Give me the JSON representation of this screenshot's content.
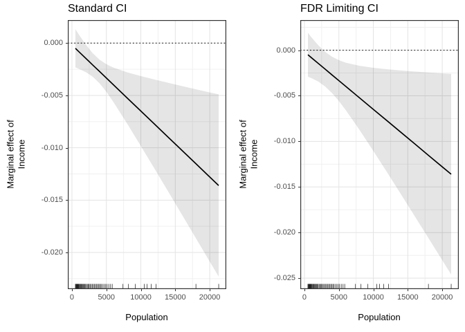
{
  "style": {
    "background": "#ffffff",
    "line_color": "#000000",
    "ribbon_color": "rgba(0,0,0,0.10)",
    "grid_major_color": "#e3e3e3",
    "grid_minor_color": "#f0f0f0",
    "panel_border_color": "#333333",
    "tick_label_color": "#4d4d4d",
    "rug_color": "#1a1a1a"
  },
  "chart_data": [
    {
      "type": "line",
      "title": "Standard CI",
      "xlabel": "Population",
      "ylabel_line1": "Marginal effect of",
      "ylabel_line2": "Income",
      "legend": null,
      "grid": true,
      "reference_line_y": 0,
      "x_domain": [
        -600,
        22400
      ],
      "y_domain": [
        -0.0235,
        0.0022
      ],
      "x_ticks": [
        0,
        5000,
        10000,
        15000,
        20000
      ],
      "x_tick_labels": [
        "0",
        "5000",
        "10000",
        "15000",
        "20000"
      ],
      "y_ticks": [
        0,
        -0.005,
        -0.01,
        -0.015,
        -0.02
      ],
      "y_tick_labels": [
        "0.000",
        "-0.005",
        "-0.010",
        "-0.015",
        "-0.020"
      ],
      "x": [
        500,
        1000,
        2000,
        3000,
        4000,
        5000,
        6000,
        8000,
        10000,
        12000,
        14000,
        16000,
        18000,
        20000,
        21300
      ],
      "fit": [
        -0.0005,
        -0.00082,
        -0.00145,
        -0.00208,
        -0.00271,
        -0.00334,
        -0.00397,
        -0.00523,
        -0.00649,
        -0.00775,
        -0.00901,
        -0.01027,
        -0.01153,
        -0.01279,
        -0.0136
      ],
      "upper": [
        0.001324,
        0.000817,
        -0.000131,
        -0.000954,
        -0.001584,
        -0.002021,
        -0.002333,
        -0.002786,
        -0.003151,
        -0.003483,
        -0.0038,
        -0.004109,
        -0.004412,
        -0.004712,
        -0.004897
      ],
      "lower": [
        -0.002324,
        -0.002457,
        -0.002769,
        -0.003206,
        -0.003836,
        -0.004659,
        -0.005607,
        -0.007674,
        -0.009829,
        -0.012017,
        -0.01422,
        -0.016431,
        -0.018648,
        -0.020868,
        -0.022303
      ],
      "rug_x": [
        500,
        560,
        620,
        660,
        700,
        730,
        760,
        800,
        830,
        870,
        900,
        950,
        1000,
        1060,
        1150,
        1250,
        1320,
        1400,
        1500,
        1600,
        1700,
        1800,
        1900,
        2000,
        2150,
        2300,
        2400,
        2500,
        2650,
        2800,
        2950,
        3100,
        3250,
        3400,
        3550,
        3700,
        3850,
        4000,
        4150,
        4300,
        4500,
        4700,
        4900,
        5100,
        5350,
        5600,
        5850,
        7400,
        8200,
        9200,
        10500,
        10900,
        11500,
        12200,
        18000,
        21300
      ]
    },
    {
      "type": "line",
      "title": "FDR Limiting CI",
      "xlabel": "Population",
      "ylabel_line1": "Marginal effect of",
      "ylabel_line2": "Income",
      "legend": null,
      "grid": true,
      "reference_line_y": 0,
      "x_domain": [
        -600,
        22400
      ],
      "y_domain": [
        -0.0262,
        0.0033
      ],
      "x_ticks": [
        0,
        5000,
        10000,
        15000,
        20000
      ],
      "x_tick_labels": [
        "0",
        "5000",
        "10000",
        "15000",
        "20000"
      ],
      "y_ticks": [
        0,
        -0.005,
        -0.01,
        -0.015,
        -0.02,
        -0.025
      ],
      "y_tick_labels": [
        "0.000",
        "-0.005",
        "-0.010",
        "-0.015",
        "-0.020",
        "-0.025"
      ],
      "x": [
        500,
        1000,
        2000,
        3000,
        4000,
        5000,
        6000,
        8000,
        10000,
        12000,
        14000,
        16000,
        18000,
        20000,
        21300
      ],
      "fit": [
        -0.0005,
        -0.00082,
        -0.00145,
        -0.00208,
        -0.00271,
        -0.00334,
        -0.00397,
        -0.00523,
        -0.00649,
        -0.00775,
        -0.00901,
        -0.01027,
        -0.01153,
        -0.01279,
        -0.0136
      ],
      "upper": [
        0.001908,
        0.001419,
        0.00054,
        -0.00018,
        -0.00072,
        -0.001101,
        -0.001369,
        -0.001713,
        -0.001931,
        -0.002093,
        -0.002227,
        -0.002343,
        -0.002449,
        -0.002548,
        -0.0026
      ],
      "lower": [
        -0.002908,
        -0.003059,
        -0.00344,
        -0.00398,
        -0.0047,
        -0.005579,
        -0.006571,
        -0.008747,
        -0.011049,
        -0.013407,
        -0.015793,
        -0.018197,
        -0.020611,
        -0.023032,
        -0.0246
      ],
      "rug_x": [
        500,
        560,
        620,
        660,
        700,
        730,
        760,
        800,
        830,
        870,
        900,
        950,
        1000,
        1060,
        1150,
        1250,
        1320,
        1400,
        1500,
        1600,
        1700,
        1800,
        1900,
        2000,
        2150,
        2300,
        2400,
        2500,
        2650,
        2800,
        2950,
        3100,
        3250,
        3400,
        3550,
        3700,
        3850,
        4000,
        4150,
        4300,
        4500,
        4700,
        4900,
        5100,
        5350,
        5600,
        5850,
        7400,
        8200,
        9200,
        10500,
        10900,
        11500,
        12200,
        18000,
        21300
      ]
    }
  ]
}
